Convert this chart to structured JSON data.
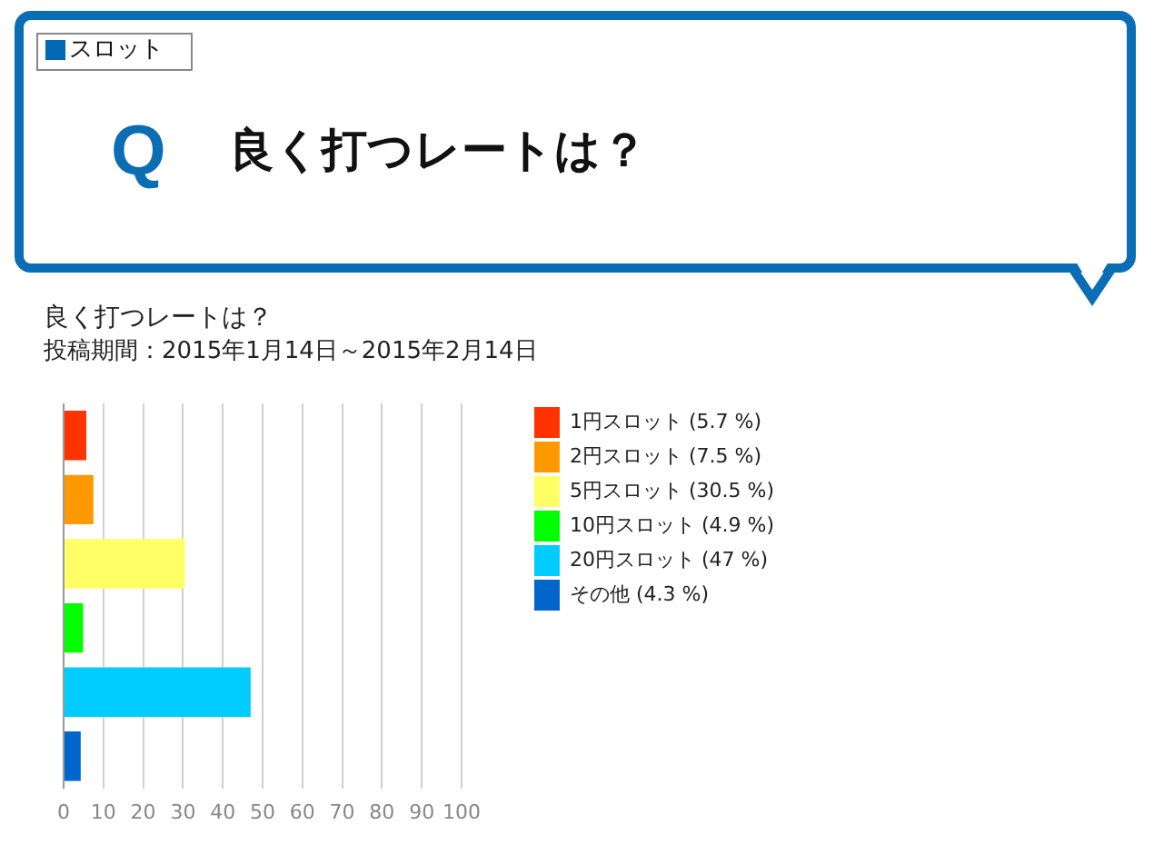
{
  "chart_data": {
    "type": "bar",
    "orientation": "horizontal",
    "title": "良く打つレートは？",
    "subtitle": "投稿期間：2015年1月14日～2015年2月14日",
    "annotations": [
      "スロット",
      "Q",
      "良く打つレートは？"
    ],
    "categories": [
      null,
      null,
      null,
      null,
      null,
      null
    ],
    "series": [
      {
        "name": "1円スロット (5.7 %)",
        "color": "#ff3300",
        "values": [
          5.7,
          null,
          null,
          null,
          null,
          null
        ]
      },
      {
        "name": "2円スロット (7.5 %)",
        "color": "#ff9900",
        "values": [
          null,
          7.5,
          null,
          null,
          null,
          null
        ]
      },
      {
        "name": "5円スロット (30.5 %)",
        "color": "#ffff66",
        "values": [
          null,
          null,
          30.5,
          null,
          null,
          null
        ]
      },
      {
        "name": "10円スロット (4.9 %)",
        "color": "#00ff00",
        "values": [
          null,
          null,
          null,
          4.9,
          null,
          null
        ]
      },
      {
        "name": "20円スロット (47 %)",
        "color": "#00ccff",
        "values": [
          null,
          null,
          null,
          null,
          47,
          null
        ]
      },
      {
        "name": "その他 (4.3 %)",
        "color": "#0066cc",
        "values": [
          null,
          null,
          null,
          null,
          null,
          4.3
        ]
      }
    ],
    "xlim": [
      0,
      100
    ],
    "xticks": [
      0,
      10,
      20,
      30,
      40,
      50,
      60,
      70,
      80,
      90,
      100
    ],
    "grid": "x",
    "legend": "top right"
  }
}
